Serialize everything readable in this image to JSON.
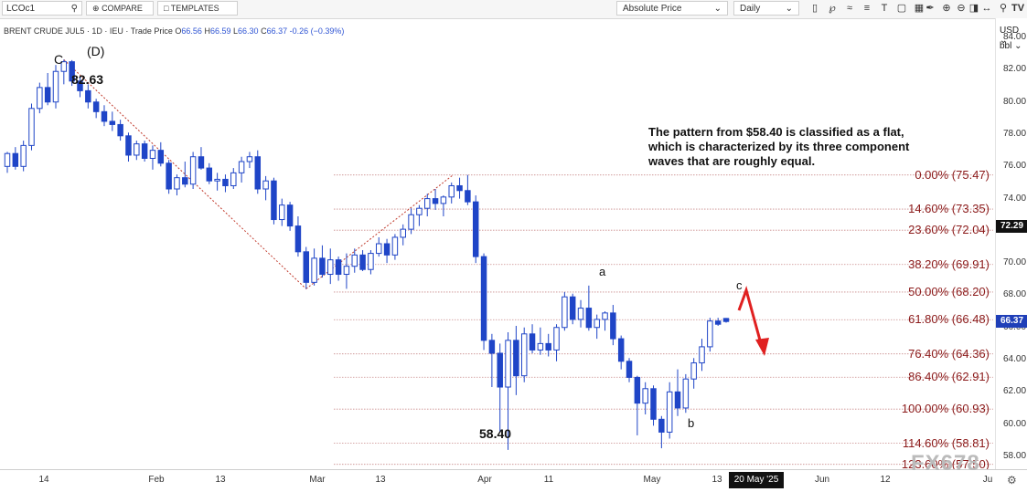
{
  "toolbar": {
    "symbol_input": "LCOc1",
    "compare_label": "COMPARE",
    "templates_label": "TEMPLATES",
    "price_mode": "Absolute Price",
    "interval": "Daily"
  },
  "header": {
    "symbol_line": "BRENT CRUDE JUL5 · 1D · IEU · Trade Price",
    "o_label": "O",
    "o_value": "66.56",
    "h_label": "H",
    "h_value": "66.59",
    "l_label": "L",
    "l_value": "66.30",
    "c_label": "C",
    "c_value": "66.37",
    "change": "-0.26 (−0.39%)"
  },
  "axis": {
    "currency": "USD",
    "unit": "bbl",
    "current_price": "66.37",
    "crosshair_price": "72.29",
    "crosshair_date": "20 May '25"
  },
  "annotations": {
    "wave_c_label": "C",
    "wave_d_label": "(D)",
    "high_value": "82.63",
    "low_value": "58.40",
    "wave_a": "a",
    "wave_b": "b",
    "wave_c_small": "c",
    "note": "The pattern from $58.40 is classified as a flat, which is characterized by its three component waves that are roughly equal."
  },
  "fib_levels": [
    {
      "label": "0.00% (75.47)",
      "price": 75.47
    },
    {
      "label": "14.60% (73.35)",
      "price": 73.35
    },
    {
      "label": "23.60% (72.04)",
      "price": 72.04
    },
    {
      "label": "38.20% (69.91)",
      "price": 69.91
    },
    {
      "label": "50.00% (68.20)",
      "price": 68.2
    },
    {
      "label": "61.80% (66.48)",
      "price": 66.48
    },
    {
      "label": "76.40% (64.36)",
      "price": 64.36
    },
    {
      "label": "86.40% (62.91)",
      "price": 62.91
    },
    {
      "label": "100.00% (60.93)",
      "price": 60.93
    },
    {
      "label": "114.60% (58.81)",
      "price": 58.81
    },
    {
      "label": "123.60% (57.50)",
      "price": 57.5
    }
  ],
  "watermark": "FX678",
  "colors": {
    "bull": "#ffffff",
    "bear": "#1f45c7",
    "candle_outline": "#1f45c7",
    "fib_line": "#c98b8b",
    "fib_text": "#8b1a1a",
    "trendline": "#c0392b",
    "arrow": "#e02020",
    "current_price_bg": "#1f3fb8",
    "crosshair_bg": "#111111"
  },
  "chart_data": {
    "type": "candlestick",
    "title": "BRENT CRUDE JUL5",
    "x_ticks": [
      "14",
      "Feb",
      "13",
      "Mar",
      "13",
      "Apr",
      "11",
      "May",
      "13",
      "Jun",
      "12",
      "Ju"
    ],
    "y_ticks": [
      "84.00",
      "82.00",
      "80.00",
      "78.00",
      "76.00",
      "74.00",
      "72.00",
      "70.00",
      "68.00",
      "66.00",
      "64.00",
      "62.00",
      "60.00",
      "58.00"
    ],
    "ylim": [
      57.2,
      85.2
    ],
    "candles": [
      {
        "o": 76.0,
        "h": 76.9,
        "l": 75.6,
        "c": 76.8
      },
      {
        "o": 76.8,
        "h": 77.2,
        "l": 75.8,
        "c": 76.0
      },
      {
        "o": 76.0,
        "h": 77.6,
        "l": 75.7,
        "c": 77.3
      },
      {
        "o": 77.3,
        "h": 79.9,
        "l": 77.0,
        "c": 79.6
      },
      {
        "o": 79.6,
        "h": 81.2,
        "l": 79.3,
        "c": 80.9
      },
      {
        "o": 80.9,
        "h": 81.8,
        "l": 79.8,
        "c": 80.0
      },
      {
        "o": 80.0,
        "h": 82.3,
        "l": 79.6,
        "c": 81.9
      },
      {
        "o": 81.9,
        "h": 82.63,
        "l": 81.1,
        "c": 82.5
      },
      {
        "o": 82.5,
        "h": 82.6,
        "l": 81.0,
        "c": 81.3
      },
      {
        "o": 81.3,
        "h": 81.6,
        "l": 80.3,
        "c": 80.7
      },
      {
        "o": 80.7,
        "h": 81.1,
        "l": 79.6,
        "c": 80.0
      },
      {
        "o": 80.0,
        "h": 80.2,
        "l": 79.0,
        "c": 79.4
      },
      {
        "o": 79.4,
        "h": 79.8,
        "l": 78.5,
        "c": 78.8
      },
      {
        "o": 78.8,
        "h": 79.4,
        "l": 78.2,
        "c": 78.6
      },
      {
        "o": 78.6,
        "h": 78.9,
        "l": 77.6,
        "c": 77.9
      },
      {
        "o": 77.9,
        "h": 78.1,
        "l": 76.3,
        "c": 76.7
      },
      {
        "o": 76.7,
        "h": 77.6,
        "l": 76.4,
        "c": 77.4
      },
      {
        "o": 77.4,
        "h": 77.6,
        "l": 76.3,
        "c": 76.5
      },
      {
        "o": 76.5,
        "h": 77.3,
        "l": 75.8,
        "c": 77.0
      },
      {
        "o": 77.0,
        "h": 77.5,
        "l": 76.0,
        "c": 76.2
      },
      {
        "o": 76.2,
        "h": 76.4,
        "l": 74.3,
        "c": 74.6
      },
      {
        "o": 74.6,
        "h": 75.5,
        "l": 74.2,
        "c": 75.3
      },
      {
        "o": 75.3,
        "h": 76.3,
        "l": 74.7,
        "c": 74.9
      },
      {
        "o": 74.9,
        "h": 76.9,
        "l": 74.6,
        "c": 76.6
      },
      {
        "o": 76.6,
        "h": 77.2,
        "l": 75.8,
        "c": 75.9
      },
      {
        "o": 75.9,
        "h": 76.2,
        "l": 74.9,
        "c": 75.1
      },
      {
        "o": 75.1,
        "h": 75.6,
        "l": 74.5,
        "c": 75.2
      },
      {
        "o": 75.2,
        "h": 75.5,
        "l": 74.4,
        "c": 74.8
      },
      {
        "o": 74.8,
        "h": 75.9,
        "l": 74.6,
        "c": 75.6
      },
      {
        "o": 75.6,
        "h": 76.6,
        "l": 75.0,
        "c": 76.3
      },
      {
        "o": 76.3,
        "h": 76.9,
        "l": 75.9,
        "c": 76.6
      },
      {
        "o": 76.6,
        "h": 77.0,
        "l": 74.3,
        "c": 74.6
      },
      {
        "o": 74.6,
        "h": 75.4,
        "l": 73.9,
        "c": 75.1
      },
      {
        "o": 75.1,
        "h": 75.3,
        "l": 72.4,
        "c": 72.7
      },
      {
        "o": 72.7,
        "h": 74.0,
        "l": 72.3,
        "c": 73.6
      },
      {
        "o": 73.6,
        "h": 73.8,
        "l": 72.0,
        "c": 72.3
      },
      {
        "o": 72.3,
        "h": 72.9,
        "l": 70.4,
        "c": 70.7
      },
      {
        "o": 70.7,
        "h": 71.0,
        "l": 68.4,
        "c": 68.8
      },
      {
        "o": 68.8,
        "h": 70.9,
        "l": 68.6,
        "c": 70.3
      },
      {
        "o": 70.3,
        "h": 71.1,
        "l": 69.1,
        "c": 69.3
      },
      {
        "o": 69.3,
        "h": 70.9,
        "l": 68.7,
        "c": 70.2
      },
      {
        "o": 70.2,
        "h": 70.4,
        "l": 68.9,
        "c": 69.3
      },
      {
        "o": 69.3,
        "h": 70.6,
        "l": 68.4,
        "c": 69.8
      },
      {
        "o": 69.8,
        "h": 70.9,
        "l": 69.4,
        "c": 70.5
      },
      {
        "o": 70.5,
        "h": 70.8,
        "l": 69.5,
        "c": 69.6
      },
      {
        "o": 69.6,
        "h": 70.8,
        "l": 69.3,
        "c": 70.6
      },
      {
        "o": 70.6,
        "h": 71.6,
        "l": 70.4,
        "c": 71.2
      },
      {
        "o": 71.2,
        "h": 71.5,
        "l": 70.0,
        "c": 70.5
      },
      {
        "o": 70.5,
        "h": 71.8,
        "l": 70.2,
        "c": 71.6
      },
      {
        "o": 71.6,
        "h": 72.4,
        "l": 71.1,
        "c": 72.1
      },
      {
        "o": 72.1,
        "h": 73.4,
        "l": 71.8,
        "c": 73.0
      },
      {
        "o": 73.0,
        "h": 73.6,
        "l": 72.3,
        "c": 73.4
      },
      {
        "o": 73.4,
        "h": 74.3,
        "l": 72.9,
        "c": 74.0
      },
      {
        "o": 74.0,
        "h": 74.6,
        "l": 73.3,
        "c": 73.7
      },
      {
        "o": 73.7,
        "h": 74.2,
        "l": 72.9,
        "c": 74.1
      },
      {
        "o": 74.1,
        "h": 75.0,
        "l": 73.7,
        "c": 74.8
      },
      {
        "o": 74.8,
        "h": 75.3,
        "l": 74.0,
        "c": 74.5
      },
      {
        "o": 74.5,
        "h": 75.47,
        "l": 73.6,
        "c": 73.8
      },
      {
        "o": 73.8,
        "h": 74.2,
        "l": 70.0,
        "c": 70.4
      },
      {
        "o": 70.4,
        "h": 70.6,
        "l": 64.6,
        "c": 65.2
      },
      {
        "o": 65.2,
        "h": 65.6,
        "l": 62.3,
        "c": 64.4
      },
      {
        "o": 64.4,
        "h": 65.0,
        "l": 59.5,
        "c": 62.3
      },
      {
        "o": 62.3,
        "h": 65.7,
        "l": 58.4,
        "c": 65.2
      },
      {
        "o": 65.2,
        "h": 66.1,
        "l": 61.8,
        "c": 63.0
      },
      {
        "o": 63.0,
        "h": 66.0,
        "l": 62.6,
        "c": 65.6
      },
      {
        "o": 65.6,
        "h": 66.2,
        "l": 64.4,
        "c": 64.6
      },
      {
        "o": 64.6,
        "h": 66.0,
        "l": 64.3,
        "c": 65.0
      },
      {
        "o": 65.0,
        "h": 65.6,
        "l": 64.2,
        "c": 64.6
      },
      {
        "o": 64.6,
        "h": 66.2,
        "l": 63.9,
        "c": 66.0
      },
      {
        "o": 66.0,
        "h": 68.2,
        "l": 65.8,
        "c": 67.9
      },
      {
        "o": 67.9,
        "h": 68.1,
        "l": 66.2,
        "c": 66.5
      },
      {
        "o": 66.5,
        "h": 67.7,
        "l": 66.0,
        "c": 67.2
      },
      {
        "o": 67.2,
        "h": 68.6,
        "l": 65.8,
        "c": 66.0
      },
      {
        "o": 66.0,
        "h": 66.8,
        "l": 65.3,
        "c": 66.5
      },
      {
        "o": 66.5,
        "h": 67.0,
        "l": 65.8,
        "c": 66.9
      },
      {
        "o": 66.9,
        "h": 67.4,
        "l": 64.9,
        "c": 65.3
      },
      {
        "o": 65.3,
        "h": 65.5,
        "l": 63.4,
        "c": 63.9
      },
      {
        "o": 63.9,
        "h": 64.1,
        "l": 62.6,
        "c": 62.9
      },
      {
        "o": 62.9,
        "h": 63.0,
        "l": 59.3,
        "c": 61.3
      },
      {
        "o": 61.3,
        "h": 62.6,
        "l": 60.6,
        "c": 62.2
      },
      {
        "o": 62.2,
        "h": 62.4,
        "l": 59.9,
        "c": 60.3
      },
      {
        "o": 60.3,
        "h": 60.5,
        "l": 58.5,
        "c": 59.5
      },
      {
        "o": 59.5,
        "h": 62.6,
        "l": 59.1,
        "c": 62.0
      },
      {
        "o": 62.0,
        "h": 63.4,
        "l": 60.5,
        "c": 61.0
      },
      {
        "o": 61.0,
        "h": 63.1,
        "l": 60.7,
        "c": 62.8
      },
      {
        "o": 62.8,
        "h": 64.1,
        "l": 62.2,
        "c": 63.8
      },
      {
        "o": 63.8,
        "h": 65.3,
        "l": 63.3,
        "c": 64.8
      },
      {
        "o": 64.8,
        "h": 66.6,
        "l": 64.5,
        "c": 66.4
      },
      {
        "o": 66.4,
        "h": 66.6,
        "l": 66.1,
        "c": 66.2
      },
      {
        "o": 66.56,
        "h": 66.59,
        "l": 66.3,
        "c": 66.37
      }
    ]
  }
}
